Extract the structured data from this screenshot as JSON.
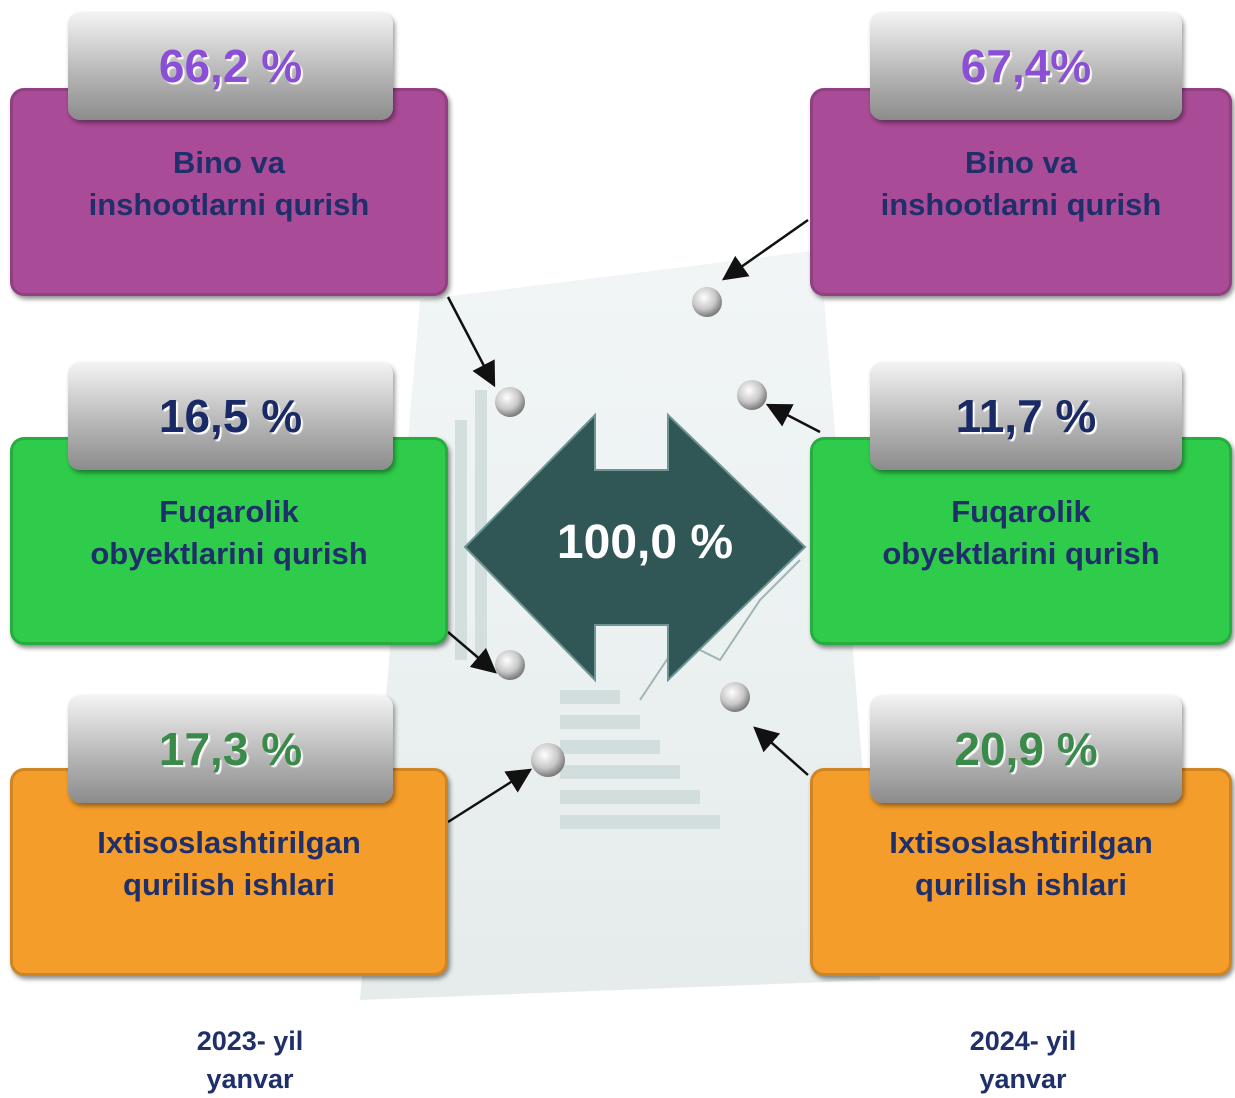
{
  "center": {
    "label": "100,0 %"
  },
  "left": {
    "year": [
      "2023- yil",
      "yanvar"
    ],
    "items": [
      {
        "value": "66,2 %",
        "label": [
          "Bino va",
          "inshootlarni qurish"
        ]
      },
      {
        "value": "16,5 %",
        "label": [
          "Fuqarolik",
          "obyektlarini qurish"
        ]
      },
      {
        "value": "17,3 %",
        "label": [
          "Ixtisoslashtirilgan",
          "qurilish ishlari"
        ]
      }
    ]
  },
  "right": {
    "year": [
      "2024- yil",
      "yanvar"
    ],
    "items": [
      {
        "value": "67,4%",
        "label": [
          "Bino va",
          "inshootlarni qurish"
        ]
      },
      {
        "value": "11,7 %",
        "label": [
          "Fuqarolik",
          "obyektlarini qurish"
        ]
      },
      {
        "value": "20,9 %",
        "label": [
          "Ixtisoslashtirilgan",
          "qurilish ishlari"
        ]
      }
    ]
  }
}
